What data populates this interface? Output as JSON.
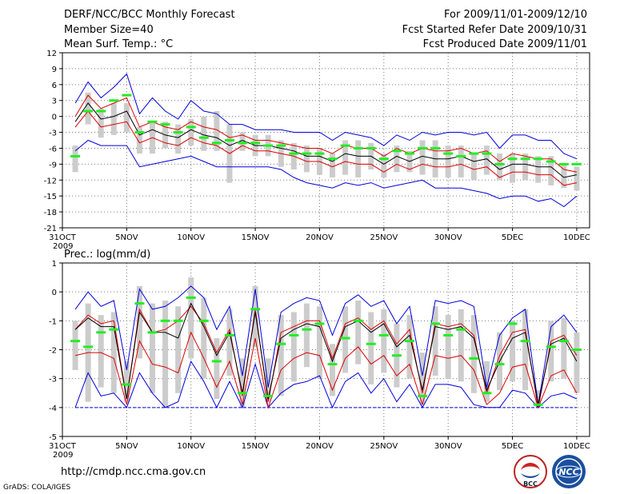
{
  "header": {
    "title": "DERF/NCC/BCC Monthly Forecast",
    "member_size": "Member Size=40",
    "variable": "Mean Surf. Temp.: °C",
    "period": "For 2009/11/01-2009/12/10",
    "started": "Fcst Started Refer Date 2009/10/31",
    "produced": "Fcst Produced Date 2009/11/01"
  },
  "footer": {
    "url": "http://cmdp.ncc.cma.gov.cn",
    "credit": "GrADS: COLA/IGES",
    "logo_left": "BCC",
    "logo_right": "NCC"
  },
  "colors": {
    "ensemble_range": "#0000dd",
    "spread": "#dd0000",
    "mean": "#000000",
    "observed": "#22ee22",
    "boxes": "#cccccc",
    "baseline": "#0000dd"
  },
  "chart_data": [
    {
      "type": "line",
      "title": "Mean Surf. Temp.: °C",
      "x_tick_labels": [
        "31OCT",
        "5NOV",
        "10NOV",
        "15NOV",
        "20NOV",
        "25NOV",
        "30NOV",
        "5DEC",
        "10DEC"
      ],
      "x_tick_days": [
        0,
        5,
        10,
        15,
        20,
        25,
        30,
        35,
        40
      ],
      "year_label": "2009",
      "ylim": [
        -21,
        12
      ],
      "yticks": [
        12,
        9,
        6,
        3,
        0,
        -3,
        -6,
        -9,
        -12,
        -15,
        -18,
        -21
      ],
      "x_days": [
        1,
        2,
        3,
        4,
        5,
        6,
        7,
        8,
        9,
        10,
        11,
        12,
        13,
        14,
        15,
        16,
        17,
        18,
        19,
        20,
        21,
        22,
        23,
        24,
        25,
        26,
        27,
        28,
        29,
        30,
        31,
        32,
        33,
        34,
        35,
        36,
        37,
        38,
        39,
        40
      ],
      "series": [
        {
          "name": "ensemble max",
          "values": [
            2.5,
            6.5,
            3.5,
            5.5,
            8,
            0.5,
            3.5,
            1,
            -0.5,
            3,
            1,
            0.5,
            -1.5,
            -1.5,
            -2.5,
            -2.5,
            -2.5,
            -3,
            -3,
            -3,
            -4.5,
            -3,
            -3.5,
            -4,
            -5.5,
            -3.5,
            -4.5,
            -3,
            -3.5,
            -3,
            -3,
            -3.5,
            -3,
            -6,
            -3.5,
            -3.5,
            -4.5,
            -4.5,
            -7,
            -8
          ]
        },
        {
          "name": "upper spread",
          "values": [
            0,
            4,
            1.5,
            2.5,
            3.5,
            -2,
            -1,
            -2,
            -2.5,
            -1,
            -2,
            -2.5,
            -4,
            -3.5,
            -4.5,
            -4.5,
            -5,
            -5.5,
            -6,
            -6,
            -7,
            -5.5,
            -6,
            -6,
            -7.5,
            -6,
            -7,
            -6,
            -6.5,
            -6.5,
            -6,
            -7,
            -6.5,
            -8.5,
            -7,
            -7.5,
            -8,
            -8,
            -10,
            -10.5
          ]
        },
        {
          "name": "ensemble mean",
          "values": [
            -1,
            2.5,
            -0.5,
            0,
            1,
            -3.5,
            -2.5,
            -3.5,
            -4,
            -2.5,
            -3.5,
            -4,
            -5.5,
            -4.5,
            -5.5,
            -5.5,
            -6,
            -6.5,
            -7.5,
            -7.5,
            -8.5,
            -7,
            -7.5,
            -7.5,
            -9,
            -7.5,
            -8.5,
            -7.5,
            -8,
            -8,
            -7.5,
            -8.5,
            -8,
            -10,
            -9,
            -9,
            -9.5,
            -9.5,
            -11.5,
            -11
          ]
        },
        {
          "name": "lower spread",
          "values": [
            -2,
            1,
            -2,
            -1.5,
            -1,
            -5,
            -4,
            -5,
            -5.5,
            -4,
            -5,
            -5.5,
            -7,
            -5.5,
            -6.5,
            -6.5,
            -7,
            -7.5,
            -8.5,
            -8.5,
            -9.5,
            -8.5,
            -9,
            -9,
            -10.5,
            -9,
            -10,
            -9,
            -9.5,
            -9.5,
            -9,
            -10,
            -9.5,
            -11.5,
            -10.5,
            -10.5,
            -11,
            -11,
            -13,
            -12.5
          ]
        },
        {
          "name": "ensemble min",
          "values": [
            -6.5,
            -4.5,
            -5.5,
            -5.5,
            -5.5,
            -9.5,
            -9,
            -8.5,
            -8,
            -7.5,
            -8.5,
            -9.5,
            -9.5,
            -9.5,
            -9.5,
            -9.5,
            -10,
            -11.5,
            -12.5,
            -13,
            -13.5,
            -12.5,
            -13,
            -12.5,
            -13.5,
            -13,
            -12.5,
            -12,
            -13.5,
            -13.5,
            -13.5,
            -14,
            -14.5,
            -15.5,
            -15,
            -15,
            -16,
            -15.5,
            -17,
            -15
          ]
        },
        {
          "name": "box high",
          "values": [
            -5.5,
            4.5,
            1.5,
            2.5,
            2.5,
            -2,
            -1,
            -1,
            -1.5,
            -0.5,
            0,
            1,
            -1.5,
            -3,
            -3.5,
            -3.5,
            -4.5,
            -5,
            -5.5,
            -6,
            -7,
            -4.5,
            -4.5,
            -5,
            -7,
            -5.5,
            -6.5,
            -4.5,
            -4.5,
            -5.5,
            -5.5,
            -7,
            -5.5,
            -7,
            -7,
            -7,
            -7.5,
            -7.5,
            -9,
            -9.5
          ]
        },
        {
          "name": "box low",
          "values": [
            -10.5,
            -1.5,
            -4,
            -3.5,
            -3,
            -7,
            -7,
            -6,
            -7,
            -5.5,
            -6.5,
            -6.5,
            -12.5,
            -6.5,
            -7.5,
            -7.5,
            -9.5,
            -10,
            -10.5,
            -11,
            -11.5,
            -11,
            -11.5,
            -10,
            -11.5,
            -10.5,
            -10.5,
            -11,
            -11.5,
            -11.5,
            -11.5,
            -12,
            -11,
            -12,
            -12.5,
            -12,
            -12.5,
            -13,
            -13.5,
            -14
          ]
        },
        {
          "name": "observed",
          "values": [
            -7.5,
            1,
            1,
            3,
            4,
            -3,
            -1,
            -1.5,
            -3,
            -2,
            -4,
            -5,
            -4.5,
            -5,
            -5,
            -5.5,
            -5.5,
            -7,
            -7,
            -7,
            -8,
            -5.5,
            -6,
            -6,
            -8,
            -6.5,
            -7,
            -6,
            -6,
            -7,
            -7.5,
            -7,
            -7,
            -9,
            -8,
            -8,
            -8,
            -8.5,
            -9,
            -9
          ]
        }
      ]
    },
    {
      "type": "line",
      "title": "Prec.: log(mm/d)",
      "x_tick_labels": [
        "31OCT",
        "5NOV",
        "10NOV",
        "15NOV",
        "20NOV",
        "25NOV",
        "30NOV",
        "5DEC",
        "10DEC"
      ],
      "x_tick_days": [
        0,
        5,
        10,
        15,
        20,
        25,
        30,
        35,
        40
      ],
      "year_label": "2009",
      "ylim": [
        -5,
        1
      ],
      "yticks": [
        1,
        0,
        -1,
        -2,
        -3,
        -4,
        -5
      ],
      "x_days": [
        1,
        2,
        3,
        4,
        5,
        6,
        7,
        8,
        9,
        10,
        11,
        12,
        13,
        14,
        15,
        16,
        17,
        18,
        19,
        20,
        21,
        22,
        23,
        24,
        25,
        26,
        27,
        28,
        29,
        30,
        31,
        32,
        33,
        34,
        35,
        36,
        37,
        38,
        39,
        40
      ],
      "series": [
        {
          "name": "ensemble max",
          "values": [
            -0.6,
            0,
            -0.5,
            -0.3,
            -2.7,
            0.1,
            -0.6,
            -0.5,
            -0.2,
            0.2,
            -0.2,
            -1.3,
            -0.5,
            -2.9,
            0.1,
            -3.3,
            -0.7,
            -0.4,
            -0.2,
            -0.3,
            -1.5,
            -0.4,
            -0.1,
            -0.5,
            -0.3,
            -1.1,
            -0.5,
            -2.9,
            -0.3,
            -0.4,
            -0.3,
            -0.5,
            -3.3,
            -1.5,
            -0.9,
            -0.6,
            -3.9,
            -1.2,
            -0.8,
            -1.4
          ]
        },
        {
          "name": "upper spread",
          "values": [
            -1.3,
            -0.8,
            -1.1,
            -1,
            -3.7,
            -0.6,
            -1.4,
            -1.3,
            -1,
            -0.5,
            -1.1,
            -2.1,
            -1.3,
            -3.6,
            -0.6,
            -3.8,
            -1.4,
            -1.2,
            -1,
            -1,
            -2.3,
            -1.1,
            -0.9,
            -1.3,
            -1,
            -1.8,
            -1.3,
            -3.5,
            -1.1,
            -1.2,
            -1.1,
            -1.5,
            -3.5,
            -2.2,
            -1.4,
            -1.3,
            -4,
            -1.7,
            -1.5,
            -2.2
          ]
        },
        {
          "name": "ensemble mean",
          "values": [
            -1.3,
            -0.9,
            -1.2,
            -1.2,
            -3.7,
            -0.7,
            -1.4,
            -1.4,
            -1.6,
            -0.4,
            -1.2,
            -2.2,
            -1.4,
            -3.5,
            -0.7,
            -3.7,
            -1.6,
            -1.3,
            -1.1,
            -1.2,
            -2.4,
            -1.2,
            -1,
            -1.4,
            -1.1,
            -1.9,
            -1.5,
            -3.4,
            -1.2,
            -1.3,
            -1.2,
            -1.6,
            -3.4,
            -2.4,
            -1.6,
            -1.4,
            -3.9,
            -1.8,
            -1.6,
            -2.4
          ]
        },
        {
          "name": "lower spread",
          "values": [
            -2.2,
            -2.1,
            -2.1,
            -2.3,
            -3.9,
            -1.7,
            -2.5,
            -2.6,
            -2.8,
            -1.4,
            -2.3,
            -3.3,
            -2.4,
            -3.9,
            -1.6,
            -4,
            -2.7,
            -2.3,
            -2.1,
            -2.2,
            -3.4,
            -2.3,
            -1.9,
            -2.5,
            -2.2,
            -2.9,
            -2.5,
            -3.9,
            -2.2,
            -2.3,
            -2.2,
            -2.7,
            -3.9,
            -3.5,
            -2.6,
            -2.5,
            -4,
            -2.9,
            -2.7,
            -3.5
          ]
        },
        {
          "name": "ensemble min",
          "values": [
            -4,
            -2.8,
            -3.6,
            -3.5,
            -4,
            -2.8,
            -3.5,
            -4,
            -3.8,
            -2.4,
            -3.1,
            -4,
            -3.1,
            -4,
            -2.5,
            -4,
            -3.5,
            -3.2,
            -3.1,
            -2.9,
            -4,
            -3.1,
            -2.8,
            -3.5,
            -3,
            -3.8,
            -3.2,
            -4,
            -3.2,
            -3.2,
            -3.3,
            -3.9,
            -4,
            -4,
            -3.4,
            -3.5,
            -4,
            -3.6,
            -3.5,
            -3.7
          ]
        },
        {
          "name": "box high",
          "values": [
            -1,
            -0.4,
            -0.8,
            -0.7,
            -2.4,
            0.2,
            -0.4,
            -0.3,
            -0.5,
            0.5,
            -0.2,
            -1.6,
            -0.6,
            -2.3,
            0.2,
            -2.3,
            -0.8,
            -0.7,
            -0.4,
            -0.5,
            -1.8,
            -0.5,
            -0.3,
            -0.7,
            -0.6,
            -1.1,
            -0.8,
            -2.1,
            -0.5,
            -0.8,
            -0.6,
            -0.8,
            -2.4,
            -1.4,
            -1,
            -0.6,
            -3.4,
            -1,
            -0.9,
            -1.4
          ]
        },
        {
          "name": "box low",
          "values": [
            -2.7,
            -3.8,
            -3.3,
            -3.5,
            -3.8,
            -2.3,
            -3.5,
            -4,
            -3.5,
            -2.3,
            -3,
            -3.7,
            -2.9,
            -4,
            -1.9,
            -3.8,
            -3.6,
            -3.1,
            -2.6,
            -3,
            -3.6,
            -2.8,
            -2.5,
            -3.2,
            -2.8,
            -3.3,
            -3,
            -3.9,
            -2.9,
            -3,
            -3.1,
            -3.5,
            -3.8,
            -3.4,
            -3.1,
            -3.4,
            -4,
            -3.1,
            -3,
            -3.5
          ]
        },
        {
          "name": "observed",
          "values": [
            -1.7,
            -1.9,
            -1.4,
            -1.3,
            -3.2,
            -0.4,
            -1.4,
            -1,
            -1,
            -0.2,
            -1,
            -2.4,
            -1.5,
            -3.5,
            -0.6,
            -3.6,
            -1.8,
            -1.5,
            -1.3,
            -1.1,
            -2.5,
            -1.6,
            -1,
            -1.8,
            -1.5,
            -2.2,
            -1.7,
            -3.6,
            -1.1,
            -1.5,
            -1.3,
            -2.3,
            -3.5,
            -2.5,
            -1.1,
            -1.7,
            -3.9,
            -1.9,
            -1.7,
            -2
          ]
        }
      ],
      "baseline": -4
    }
  ]
}
